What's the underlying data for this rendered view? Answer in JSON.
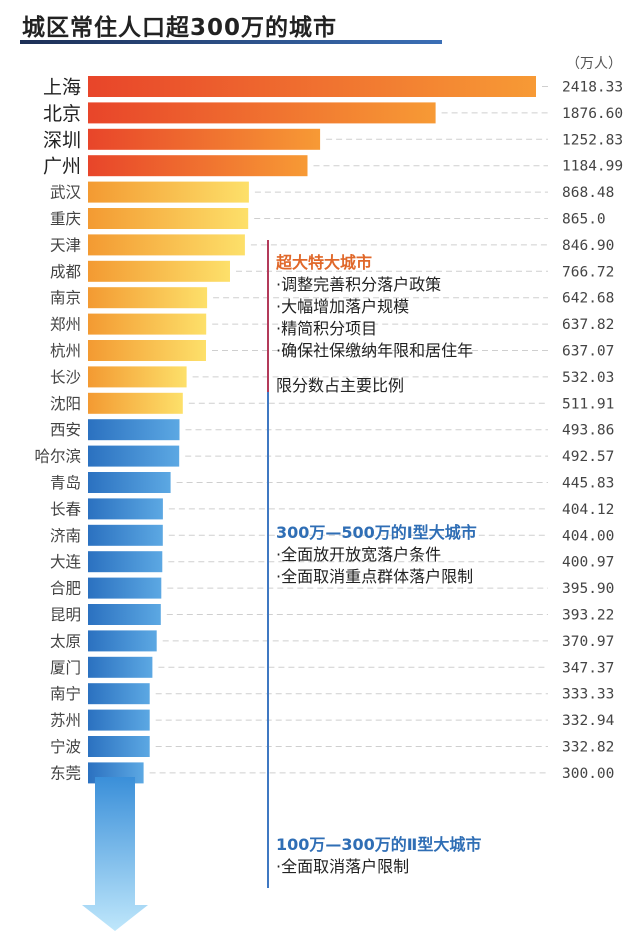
{
  "title": "城区常住人口超300万的城市",
  "unit": "（万人）",
  "chart_data": {
    "type": "bar",
    "orientation": "horizontal",
    "title": "城区常住人口超300万的城市",
    "unit": "万人",
    "categories": [
      "上海",
      "北京",
      "深圳",
      "广州",
      "武汉",
      "重庆",
      "天津",
      "成都",
      "南京",
      "郑州",
      "杭州",
      "长沙",
      "沈阳",
      "西安",
      "哈尔滨",
      "青岛",
      "长春",
      "济南",
      "大连",
      "合肥",
      "昆明",
      "太原",
      "厦门",
      "南宁",
      "苏州",
      "宁波",
      "东莞"
    ],
    "values": [
      2418.33,
      1876.6,
      1252.83,
      1184.99,
      868.48,
      865.0,
      846.9,
      766.72,
      642.68,
      637.82,
      637.07,
      532.03,
      511.91,
      493.86,
      492.57,
      445.83,
      404.12,
      404.0,
      400.97,
      395.9,
      393.22,
      370.97,
      347.37,
      333.33,
      332.94,
      332.82,
      300.0
    ],
    "value_labels": [
      "2418.33",
      "1876.60",
      "1252.83",
      "1184.99",
      "868.48",
      "865.0",
      "846.90",
      "766.72",
      "642.68",
      "637.82",
      "637.07",
      "532.03",
      "511.91",
      "493.86",
      "492.57",
      "445.83",
      "404.12",
      "404.00",
      "400.97",
      "395.90",
      "393.22",
      "370.97",
      "347.37",
      "333.33",
      "332.94",
      "332.82",
      "300.00"
    ],
    "groups": [
      "超大城市",
      "超大城市",
      "超大城市",
      "超大城市",
      "特大城市",
      "特大城市",
      "特大城市",
      "特大城市",
      "特大城市",
      "特大城市",
      "特大城市",
      "特大城市",
      "特大城市",
      "I型大城市",
      "I型大城市",
      "I型大城市",
      "I型大城市",
      "I型大城市",
      "I型大城市",
      "I型大城市",
      "I型大城市",
      "I型大城市",
      "I型大城市",
      "I型大城市",
      "I型大城市",
      "I型大城市",
      "I型大城市"
    ],
    "xlim": [
      0,
      2418.33
    ],
    "grid": "dashed row guides"
  },
  "colors": {
    "megacity": [
      "#e8452a",
      "#f79a35"
    ],
    "supercity": [
      "#f39a32",
      "#fde06a"
    ],
    "type1": [
      "#2b71c0",
      "#5ca8e3"
    ],
    "arrow": [
      "#3a8fd9",
      "#bfe7fb"
    ],
    "red_heading": "#e0682a",
    "blue_heading": "#2f6eb5"
  },
  "annotations": {
    "supercity": {
      "heading": "超大特大城市",
      "items": [
        "·调整完善积分落户政策",
        "·大幅增加落户规模",
        "·精简积分项目",
        "·确保社保缴纳年限和居住年"
      ],
      "continuation": "限分数占主要比例"
    },
    "type1": {
      "heading": "300万—500万的Ⅰ型大城市",
      "items": [
        "·全面放开放宽落户条件",
        "·全面取消重点群体落户限制"
      ]
    },
    "type2": {
      "heading": "100万—300万的Ⅱ型大城市",
      "items": [
        "·全面取消落户限制"
      ]
    }
  }
}
